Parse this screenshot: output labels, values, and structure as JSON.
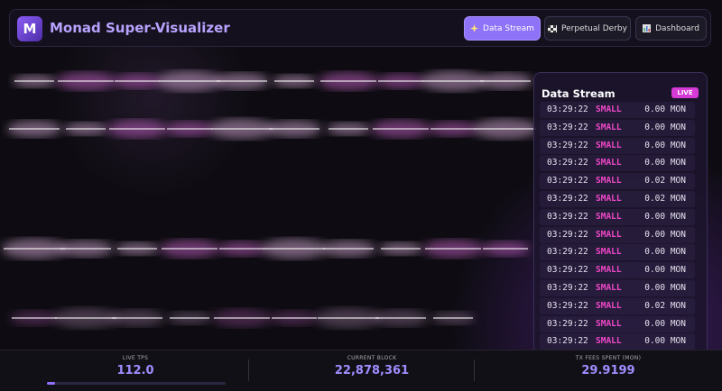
{
  "header": {
    "logo": "M",
    "title": "Monad Super-Visualizer",
    "nav": [
      "Data Stream",
      "Perpetual Derby",
      "Dashboard"
    ]
  },
  "stream": {
    "title": "Data Stream",
    "badge": "LIVE",
    "rows": [
      [
        "03:29:22",
        "SMALL",
        "0.00 MON"
      ],
      [
        "03:29:22",
        "SMALL",
        "0.00 MON"
      ],
      [
        "03:29:22",
        "SMALL",
        "0.00 MON"
      ],
      [
        "03:29:22",
        "SMALL",
        "0.00 MON"
      ],
      [
        "03:29:22",
        "SMALL",
        "0.02 MON"
      ],
      [
        "03:29:22",
        "SMALL",
        "0.02 MON"
      ],
      [
        "03:29:22",
        "SMALL",
        "0.00 MON"
      ],
      [
        "03:29:22",
        "SMALL",
        "0.00 MON"
      ],
      [
        "03:29:22",
        "SMALL",
        "0.00 MON"
      ],
      [
        "03:29:22",
        "SMALL",
        "0.00 MON"
      ],
      [
        "03:29:22",
        "SMALL",
        "0.00 MON"
      ],
      [
        "03:29:22",
        "SMALL",
        "0.02 MON"
      ],
      [
        "03:29:22",
        "SMALL",
        "0.00 MON"
      ],
      [
        "03:29:22",
        "SMALL",
        "0.00 MON"
      ]
    ]
  },
  "stats": [
    {
      "label": "LIVE TPS",
      "value": "112.0"
    },
    {
      "label": "CURRENT BLOCK",
      "value": "22,878,361"
    },
    {
      "label": "TX FEES SPENT (MON)",
      "value": "29.9199"
    }
  ]
}
